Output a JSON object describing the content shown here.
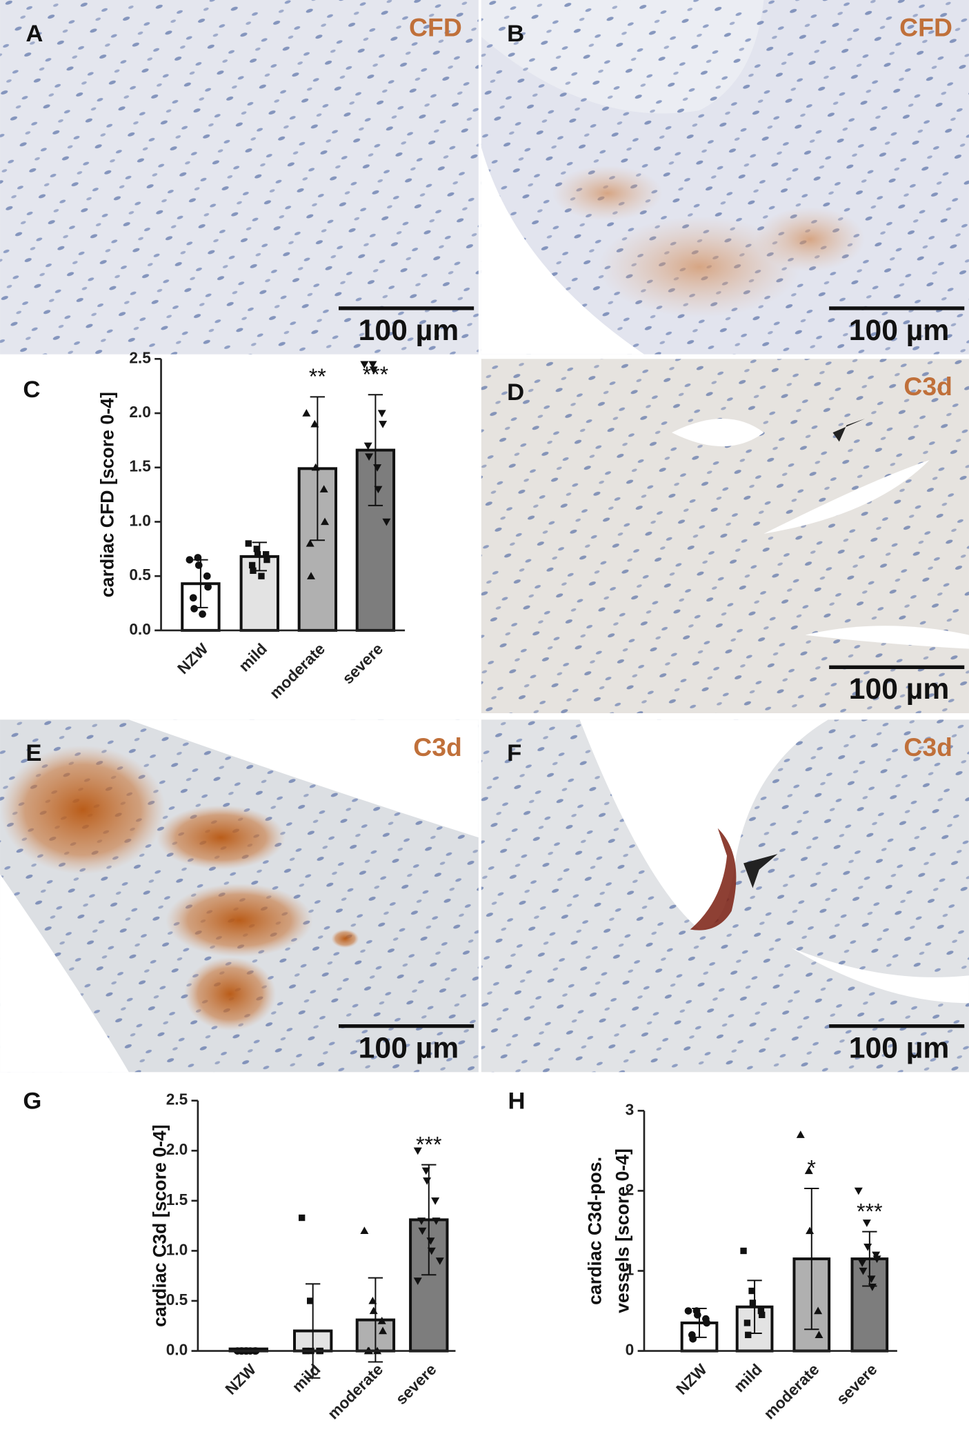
{
  "panels": [
    {
      "letter": "A",
      "stain": "CFD",
      "scale_bar": "100 µm"
    },
    {
      "letter": "B",
      "stain": "CFD",
      "scale_bar": "100 µm"
    },
    {
      "letter": "D",
      "stain": "C3d",
      "scale_bar": "100 µm"
    },
    {
      "letter": "E",
      "stain": "C3d",
      "scale_bar": "100 µm"
    },
    {
      "letter": "F",
      "stain": "C3d",
      "scale_bar": "100 µm"
    }
  ],
  "chart_data": [
    {
      "type": "bar",
      "letter": "C",
      "ylabel": [
        "cardiac CFD [score 0-4]"
      ],
      "categories": [
        "NZW",
        "mild",
        "moderate",
        "severe"
      ],
      "values": [
        0.43,
        0.68,
        1.49,
        1.66
      ],
      "errors": [
        0.22,
        0.13,
        0.66,
        0.51
      ],
      "significance": [
        null,
        null,
        "**",
        "***"
      ],
      "points": [
        [
          0.65,
          0.67,
          0.6,
          0.5,
          0.4,
          0.3,
          0.2,
          0.15
        ],
        [
          0.8,
          0.75,
          0.7,
          0.7,
          0.65,
          0.6,
          0.55,
          0.5
        ],
        [
          2.0,
          1.9,
          1.5,
          1.3,
          1.0,
          0.8,
          0.5
        ],
        [
          2.45,
          2.45,
          2.4,
          2.0,
          1.9,
          1.7,
          1.6,
          1.5,
          1.3,
          1.0
        ]
      ],
      "markers": [
        "circle",
        "square",
        "triangle-up",
        "triangle-down"
      ],
      "colors": [
        "#ffffff",
        "#e3e3e3",
        "#b0b0b0",
        "#7d7d7d"
      ],
      "ylim": [
        0,
        2.5
      ],
      "yticks": [
        {
          "value": 0,
          "label": "0.0"
        },
        {
          "value": 0.5,
          "label": "0.5"
        },
        {
          "value": 1,
          "label": "1.0"
        },
        {
          "value": 1.5,
          "label": "1.5"
        },
        {
          "value": 2,
          "label": "2.0"
        },
        {
          "value": 2.5,
          "label": "2.5"
        }
      ]
    },
    {
      "type": "bar",
      "letter": "G",
      "ylabel": [
        "cardiac C3d [score 0-4]"
      ],
      "categories": [
        "NZW",
        "mild",
        "moderate",
        "severe"
      ],
      "values": [
        0.02,
        0.2,
        0.31,
        1.31
      ],
      "errors": [
        0,
        0.47,
        0.42,
        0.55
      ],
      "significance": [
        null,
        null,
        null,
        "***"
      ],
      "points": [
        [
          0,
          0,
          0,
          0,
          0,
          0,
          0,
          0
        ],
        [
          1.33,
          0.5,
          0,
          0,
          0,
          0,
          0
        ],
        [
          1.2,
          0.5,
          0.4,
          0.3,
          0.2,
          0,
          0,
          0
        ],
        [
          2.0,
          1.8,
          1.7,
          1.5,
          1.3,
          1.3,
          1.2,
          1.1,
          1.0,
          0.9,
          0.7
        ]
      ],
      "markers": [
        "circle",
        "square",
        "triangle-up",
        "triangle-down"
      ],
      "colors": [
        "#ffffff",
        "#e3e3e3",
        "#b0b0b0",
        "#7d7d7d"
      ],
      "ylim": [
        0,
        2.5
      ],
      "yticks": [
        {
          "value": 0,
          "label": "0.0"
        },
        {
          "value": 0.5,
          "label": "0.5"
        },
        {
          "value": 1,
          "label": "1.0"
        },
        {
          "value": 1.5,
          "label": "1.5"
        },
        {
          "value": 2,
          "label": "2.0"
        },
        {
          "value": 2.5,
          "label": "2.5"
        }
      ]
    },
    {
      "type": "bar",
      "letter": "H",
      "ylabel": [
        "cardiac C3d-pos.",
        "vessels [score 0-4]"
      ],
      "categories": [
        "NZW",
        "mild",
        "moderate",
        "severe"
      ],
      "values": [
        0.35,
        0.55,
        1.15,
        1.15
      ],
      "errors": [
        0.18,
        0.33,
        0.88,
        0.34
      ],
      "significance": [
        null,
        null,
        "*",
        "***"
      ],
      "points": [
        [
          0.5,
          0.5,
          0.45,
          0.4,
          0.35,
          0.2,
          0.15
        ],
        [
          1.25,
          0.75,
          0.6,
          0.5,
          0.45,
          0.35,
          0.2
        ],
        [
          2.7,
          2.25,
          1.5,
          0.5,
          0.2
        ],
        [
          2.0,
          1.6,
          1.3,
          1.2,
          1.15,
          1.1,
          1.0,
          0.9,
          0.8
        ]
      ],
      "markers": [
        "circle",
        "square",
        "triangle-up",
        "triangle-down"
      ],
      "colors": [
        "#ffffff",
        "#e3e3e3",
        "#b0b0b0",
        "#7d7d7d"
      ],
      "ylim": [
        0,
        3
      ],
      "yticks": [
        0,
        1,
        2,
        3
      ]
    }
  ]
}
